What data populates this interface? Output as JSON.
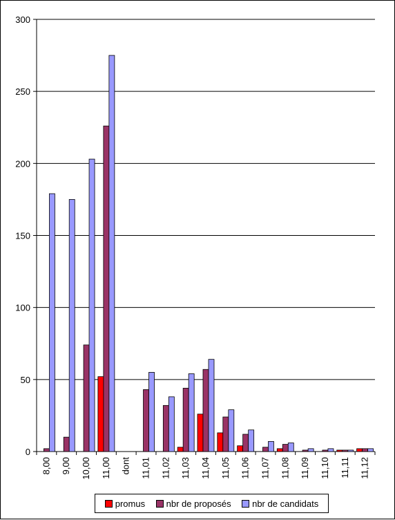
{
  "chart_data": {
    "type": "bar",
    "categories": [
      "8,00",
      "9,00",
      "10,00",
      "11,00",
      "dont",
      "11,01",
      "11,02",
      "11,03",
      "11,04",
      "11,05",
      "11,06",
      "11,07",
      "11,08",
      "11,09",
      "11,10",
      "11,11",
      "11,12"
    ],
    "series": [
      {
        "name": "promus",
        "color": "#ff0000",
        "values": [
          0,
          0,
          0,
          52,
          0,
          0,
          0,
          3,
          26,
          13,
          4,
          0,
          2,
          0,
          0,
          1,
          2
        ]
      },
      {
        "name": "nbr de proposés",
        "color": "#993366",
        "values": [
          2,
          10,
          74,
          226,
          0,
          43,
          32,
          44,
          57,
          24,
          12,
          3,
          5,
          1,
          1,
          1,
          2
        ]
      },
      {
        "name": "nbr de candidats",
        "color": "#9999ff",
        "values": [
          179,
          175,
          203,
          275,
          0,
          55,
          38,
          54,
          64,
          29,
          15,
          7,
          6,
          2,
          2,
          1,
          2
        ]
      }
    ],
    "yticks": [
      "0",
      "50",
      "100",
      "150",
      "200",
      "250",
      "300"
    ],
    "ylim": [
      0,
      300
    ],
    "grid": true,
    "legend_position": "bottom"
  }
}
